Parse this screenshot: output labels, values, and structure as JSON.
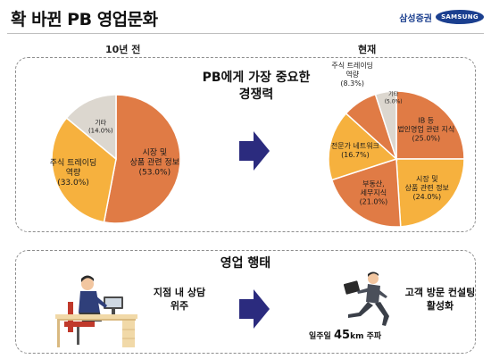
{
  "header": {
    "title": "확 바뀐 PB 영업문화",
    "brand_kr": "삼성증권",
    "brand_logo": "SAMSUNG"
  },
  "top_section": {
    "left_label": "10년 전",
    "right_label": "현재",
    "center_title_line1": "PB에게 가장 중요한",
    "center_title_line2": "경쟁력"
  },
  "chart_data": [
    {
      "type": "pie",
      "title": "10년 전",
      "unit": "%",
      "slices": [
        {
          "label_lines": [
            "시장 및",
            "상품 관련 정보"
          ],
          "value": 53.0,
          "value_text": "(53.0%)",
          "color": "#e07b45"
        },
        {
          "label_lines": [
            "주식 트레이딩",
            "역량"
          ],
          "value": 33.0,
          "value_text": "(33.0%)",
          "color": "#f6b13e"
        },
        {
          "label_lines": [
            "기타"
          ],
          "value": 14.0,
          "value_text": "(14.0%)",
          "color": "#dcd7cf"
        }
      ]
    },
    {
      "type": "pie",
      "title": "현재",
      "unit": "%",
      "slices": [
        {
          "label_lines": [
            "IB 등",
            "법인영업 관련 지식"
          ],
          "value": 25.0,
          "value_text": "(25.0%)",
          "color": "#e07b45"
        },
        {
          "label_lines": [
            "시장 및",
            "상품 관련 정보"
          ],
          "value": 24.0,
          "value_text": "(24.0%)",
          "color": "#f6b13e"
        },
        {
          "label_lines": [
            "부동산,",
            "세무지식"
          ],
          "value": 21.0,
          "value_text": "(21.0%)",
          "color": "#e07b45"
        },
        {
          "label_lines": [
            "전문가 네트워크"
          ],
          "value": 16.7,
          "value_text": "(16.7%)",
          "color": "#f6b13e"
        },
        {
          "label_lines": [
            "주식 트레이딩",
            "역량"
          ],
          "value": 8.3,
          "value_text": "(8.3%)",
          "color": "#e07b45"
        },
        {
          "label_lines": [
            "기타"
          ],
          "value": 5.0,
          "value_text": "(5.0%)",
          "color": "#dcd7cf"
        }
      ]
    }
  ],
  "bottom_section": {
    "title": "영업 행태",
    "left_caption_line1": "지점 내 상담",
    "left_caption_line2": "위주",
    "right_caption_line1": "고객 방문 컨설팅",
    "right_caption_line2": "활성화",
    "note_prefix": "일주일",
    "note_number": "45",
    "note_suffix": "km 주파"
  },
  "colors": {
    "arrow": "#2b2b7e",
    "accent": "#e07b45",
    "pale": "#f6b13e"
  }
}
